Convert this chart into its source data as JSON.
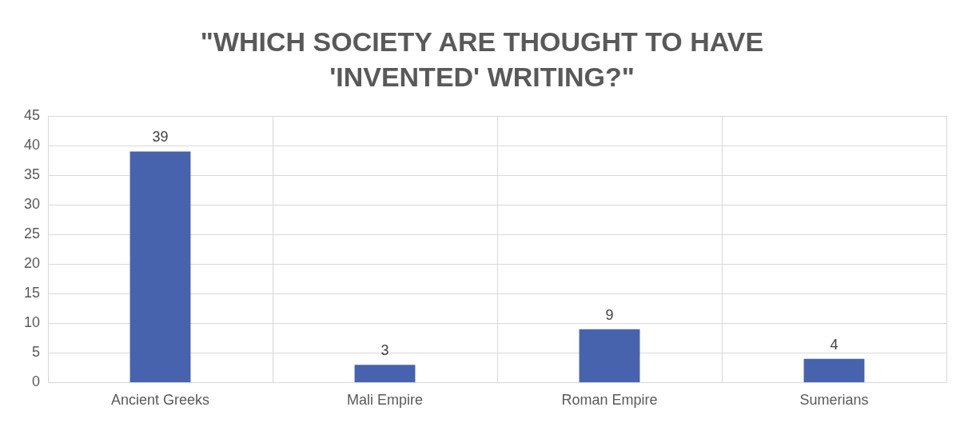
{
  "chart_data": {
    "type": "bar",
    "title": "\"WHICH SOCIETY ARE THOUGHT TO HAVE 'INVENTED' WRITING?\"",
    "categories": [
      "Ancient Greeks",
      "Mali Empire",
      "Roman Empire",
      "Sumerians"
    ],
    "values": [
      39,
      3,
      9,
      4
    ],
    "color": "#4763ae",
    "ylim": [
      0,
      45
    ],
    "yticks": [
      0,
      5,
      10,
      15,
      20,
      25,
      30,
      35,
      40,
      45
    ],
    "grid": true,
    "data_labels": true
  }
}
